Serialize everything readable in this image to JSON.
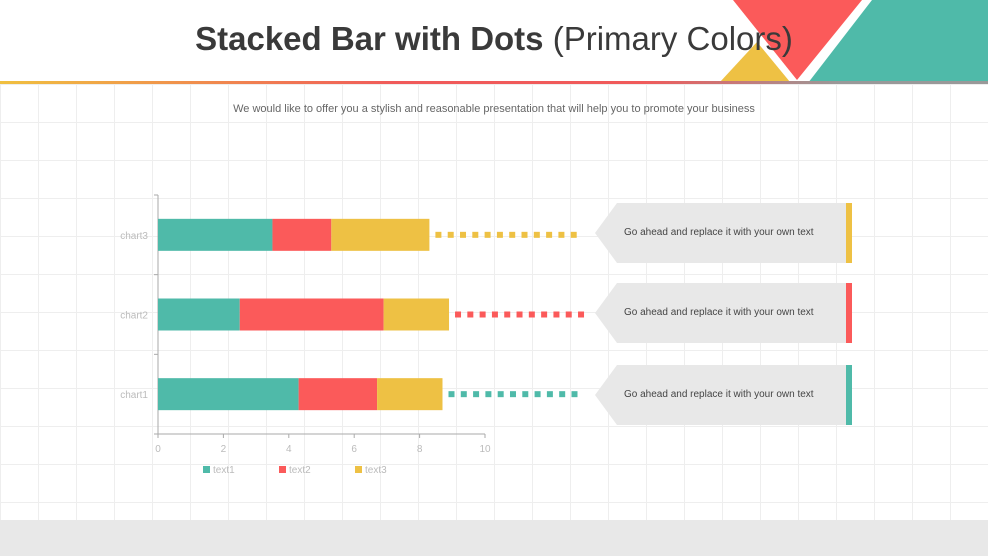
{
  "header": {
    "title_bold": "Stacked Bar with Dots",
    "title_light": " (Primary Colors)",
    "subtitle": "We would like to offer you a stylish and reasonable presentation that will help you to promote your business"
  },
  "colors": {
    "teal": "#4fbaa9",
    "red": "#fb5a5a",
    "yellow": "#eec144"
  },
  "chart_data": {
    "type": "bar",
    "orientation": "horizontal",
    "stacked": true,
    "categories": [
      "chart1",
      "chart2",
      "chart3"
    ],
    "series": [
      {
        "name": "text1",
        "color": "#4fbaa9",
        "values": [
          4.3,
          2.5,
          3.5
        ]
      },
      {
        "name": "text2",
        "color": "#fb5a5a",
        "values": [
          2.4,
          4.4,
          1.8
        ]
      },
      {
        "name": "text3",
        "color": "#eec144",
        "values": [
          2.0,
          2.0,
          3.0
        ]
      }
    ],
    "xlim": [
      0,
      10
    ],
    "xticks": [
      0,
      2,
      4,
      6,
      8,
      10
    ],
    "legend": "bottom"
  },
  "callouts": [
    {
      "text": "Go ahead and replace it with your own text",
      "color": "#eec144"
    },
    {
      "text": "Go ahead and replace it with your own text",
      "color": "#fb5a5a"
    },
    {
      "text": "Go ahead and replace it with your own text",
      "color": "#4fbaa9"
    }
  ]
}
